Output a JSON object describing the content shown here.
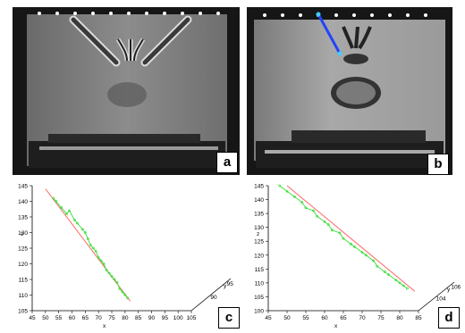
{
  "panels": [
    {
      "label": "a"
    },
    {
      "label": "b"
    },
    {
      "label": "c"
    },
    {
      "label": "d"
    }
  ],
  "colors": {
    "trajectory": "#33dd33",
    "reference_line": "#ff6666",
    "needle_overlay": "#2244ff"
  },
  "chart_data": [
    {
      "type": "line",
      "panel": "c",
      "ylabel": "z",
      "xlabel": "x",
      "depth_label": "y",
      "z_ticks": [
        105,
        110,
        115,
        120,
        125,
        130,
        135,
        140,
        145
      ],
      "x_ticks": [
        45,
        50,
        55,
        60,
        65,
        70,
        75,
        80,
        85,
        90,
        95,
        100,
        105
      ],
      "y_ticks": [
        90,
        95
      ],
      "zlim": [
        105,
        145
      ],
      "xlim": [
        45,
        105
      ],
      "series": [
        {
          "kind": "reference",
          "x": [
            50,
            82
          ],
          "z": [
            144,
            108
          ]
        },
        {
          "kind": "trajectory",
          "x": [
            53,
            54,
            56,
            58,
            59,
            61,
            62,
            64,
            65,
            66,
            67,
            68,
            69,
            70,
            71,
            72,
            73,
            74,
            75,
            76,
            77,
            78,
            79,
            80,
            81
          ],
          "z": [
            141,
            140,
            138,
            136,
            137,
            134,
            133,
            131,
            130,
            128,
            126,
            125,
            124,
            122,
            121,
            120,
            118,
            117,
            116,
            115,
            114,
            112,
            111,
            110,
            109
          ]
        }
      ]
    },
    {
      "type": "line",
      "panel": "d",
      "ylabel": "z",
      "xlabel": "x",
      "depth_label": "y",
      "z_ticks": [
        100,
        105,
        110,
        115,
        120,
        125,
        130,
        135,
        140,
        145
      ],
      "x_ticks": [
        45,
        50,
        55,
        60,
        65,
        70,
        75,
        80,
        85
      ],
      "y_ticks": [
        104,
        106
      ],
      "zlim": [
        100,
        145
      ],
      "xlim": [
        45,
        85
      ],
      "series": [
        {
          "kind": "reference",
          "x": [
            50,
            84
          ],
          "z": [
            145,
            107
          ]
        },
        {
          "kind": "trajectory",
          "x": [
            48,
            50,
            52,
            54,
            55,
            57,
            58,
            60,
            61,
            62,
            64,
            65,
            67,
            68,
            70,
            71,
            73,
            74,
            76,
            77,
            79,
            80,
            81,
            82
          ],
          "z": [
            145,
            143,
            141,
            139,
            137,
            136,
            134,
            132,
            131,
            129,
            128,
            126,
            124,
            123,
            121,
            120,
            118,
            116,
            114,
            113,
            111,
            110,
            109,
            108
          ]
        }
      ]
    }
  ]
}
